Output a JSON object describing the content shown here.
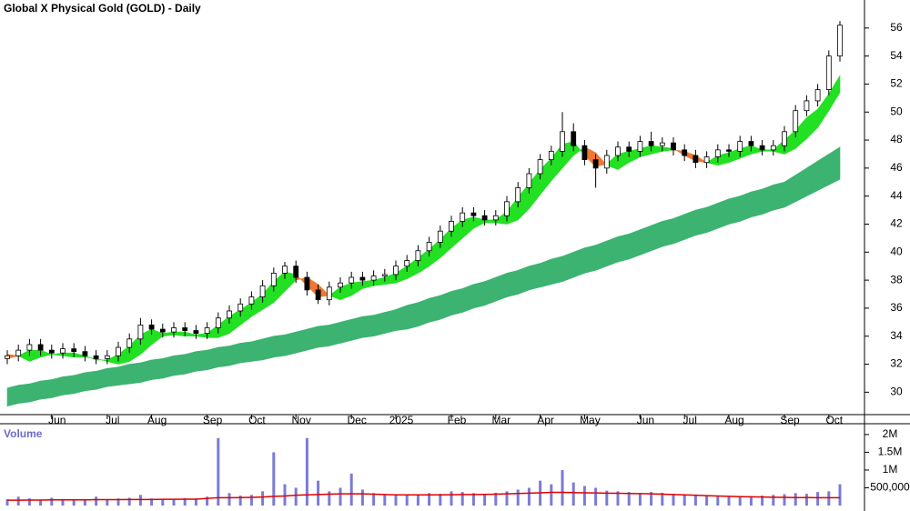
{
  "chart_data": [
    {
      "type": "candlestick",
      "title": "Global X Physical Gold (GOLD) - Daily",
      "categories": [
        null,
        null,
        null,
        null,
        "Jun",
        null,
        null,
        null,
        null,
        "Jul",
        null,
        null,
        null,
        "Aug",
        null,
        null,
        null,
        null,
        "Sep",
        null,
        null,
        null,
        "Oct",
        null,
        null,
        null,
        "Nov",
        null,
        null,
        null,
        null,
        "Dec",
        null,
        null,
        null,
        "2025",
        null,
        null,
        null,
        null,
        "Feb",
        null,
        null,
        null,
        "Mar",
        null,
        null,
        null,
        "Apr",
        null,
        null,
        null,
        "May",
        null,
        null,
        null,
        null,
        "Jun",
        null,
        null,
        null,
        "Jul",
        null,
        null,
        null,
        "Aug",
        null,
        null,
        null,
        null,
        "Sep",
        null,
        null,
        null,
        "Oct",
        null
      ],
      "open": [
        32.4,
        32.6,
        33.0,
        33.4,
        33.0,
        32.8,
        33.1,
        32.9,
        32.6,
        32.4,
        32.6,
        33.2,
        33.8,
        34.8,
        34.5,
        34.3,
        34.6,
        34.4,
        34.2,
        34.6,
        35.3,
        35.8,
        36.3,
        36.8,
        37.6,
        38.5,
        39.0,
        38.2,
        37.3,
        36.6,
        37.5,
        37.8,
        38.2,
        38.0,
        38.3,
        38.4,
        39.0,
        39.4,
        40.1,
        40.7,
        41.5,
        42.2,
        42.8,
        42.6,
        42.3,
        42.6,
        43.6,
        44.6,
        45.6,
        46.6,
        47.2,
        48.6,
        47.6,
        46.6,
        46.0,
        46.9,
        47.5,
        47.2,
        47.9,
        47.6,
        47.8,
        47.3,
        46.9,
        46.4,
        46.8,
        47.3,
        47.2,
        47.9,
        47.6,
        47.3,
        47.6,
        48.6,
        50.1,
        50.8,
        51.6,
        54.0
      ],
      "high": [
        33.0,
        33.4,
        33.8,
        33.8,
        33.4,
        33.5,
        33.5,
        33.3,
        33.0,
        33.0,
        33.6,
        34.2,
        35.3,
        35.2,
        34.9,
        35.0,
        35.0,
        34.8,
        35.0,
        35.7,
        36.2,
        36.7,
        37.2,
        38.0,
        38.9,
        39.3,
        39.4,
        38.6,
        37.7,
        37.9,
        38.2,
        38.6,
        38.6,
        38.7,
        38.8,
        39.4,
        39.8,
        40.5,
        41.1,
        41.9,
        42.6,
        43.2,
        43.2,
        43.0,
        43.0,
        44.0,
        45.0,
        46.0,
        47.0,
        47.6,
        50.0,
        49.2,
        48.0,
        47.0,
        47.3,
        47.9,
        47.9,
        48.3,
        48.6,
        48.2,
        48.2,
        47.7,
        47.3,
        47.2,
        47.7,
        47.7,
        48.3,
        48.3,
        48.0,
        48.0,
        49.0,
        50.5,
        51.2,
        52.0,
        54.4,
        56.5
      ],
      "low": [
        32.0,
        32.2,
        32.6,
        32.6,
        32.4,
        32.4,
        32.5,
        32.2,
        32.0,
        32.0,
        32.2,
        32.8,
        33.4,
        34.1,
        33.9,
        33.9,
        34.0,
        33.8,
        33.8,
        34.2,
        34.9,
        35.4,
        35.9,
        36.4,
        37.2,
        38.1,
        37.8,
        36.9,
        36.3,
        36.2,
        37.1,
        37.4,
        37.6,
        37.6,
        37.9,
        38.0,
        38.6,
        39.0,
        39.7,
        40.3,
        41.1,
        41.8,
        42.2,
        41.9,
        41.9,
        42.2,
        43.2,
        44.2,
        45.2,
        46.2,
        46.8,
        47.2,
        46.2,
        44.6,
        45.6,
        46.5,
        46.8,
        46.8,
        47.2,
        47.2,
        46.9,
        46.5,
        46.0,
        46.0,
        46.4,
        46.8,
        46.8,
        47.2,
        46.9,
        46.9,
        47.2,
        48.2,
        49.7,
        50.4,
        51.2,
        53.6
      ],
      "close": [
        32.6,
        33.0,
        33.4,
        33.0,
        32.8,
        33.1,
        32.9,
        32.6,
        32.4,
        32.6,
        33.2,
        33.8,
        34.8,
        34.5,
        34.3,
        34.6,
        34.4,
        34.2,
        34.6,
        35.3,
        35.8,
        36.3,
        36.8,
        37.6,
        38.5,
        39.0,
        38.2,
        37.3,
        36.6,
        37.5,
        37.8,
        38.2,
        38.0,
        38.3,
        38.4,
        39.0,
        39.4,
        40.1,
        40.7,
        41.5,
        42.2,
        42.8,
        42.6,
        42.3,
        42.6,
        43.6,
        44.6,
        45.6,
        46.6,
        47.2,
        48.6,
        47.6,
        46.6,
        46.0,
        46.9,
        47.5,
        47.2,
        47.9,
        47.6,
        47.8,
        47.3,
        46.9,
        46.4,
        46.8,
        47.3,
        47.2,
        47.9,
        47.6,
        47.3,
        47.6,
        48.6,
        50.1,
        50.8,
        51.6,
        54.0,
        56.2
      ],
      "up_color": "#ffffff",
      "down_color": "#000000",
      "ema_slow": {
        "color": "#3cb371",
        "upper": [
          30.3,
          30.5,
          30.6,
          30.8,
          30.9,
          31.1,
          31.2,
          31.4,
          31.5,
          31.7,
          31.8,
          32.0,
          32.1,
          32.3,
          32.4,
          32.6,
          32.7,
          32.9,
          33.0,
          33.2,
          33.3,
          33.5,
          33.6,
          33.8,
          34.0,
          34.1,
          34.3,
          34.5,
          34.7,
          34.8,
          35.0,
          35.2,
          35.4,
          35.5,
          35.7,
          35.9,
          36.2,
          36.4,
          36.7,
          36.9,
          37.2,
          37.4,
          37.7,
          37.9,
          38.2,
          38.5,
          38.7,
          39.0,
          39.2,
          39.5,
          39.7,
          40.0,
          40.3,
          40.5,
          40.8,
          41.1,
          41.3,
          41.6,
          41.9,
          42.2,
          42.4,
          42.7,
          43.0,
          43.2,
          43.5,
          43.8,
          44.0,
          44.3,
          44.5,
          44.8,
          45.0,
          45.5,
          46.0,
          46.5,
          47.0,
          47.5
        ],
        "lower": [
          29.0,
          29.2,
          29.3,
          29.5,
          29.6,
          29.8,
          29.9,
          30.1,
          30.2,
          30.4,
          30.5,
          30.6,
          30.7,
          30.9,
          31.0,
          31.2,
          31.3,
          31.5,
          31.6,
          31.8,
          31.9,
          32.1,
          32.2,
          32.3,
          32.5,
          32.6,
          32.8,
          33.0,
          33.2,
          33.3,
          33.5,
          33.7,
          33.9,
          34.0,
          34.2,
          34.4,
          34.5,
          34.7,
          35.0,
          35.2,
          35.5,
          35.7,
          36.0,
          36.2,
          36.5,
          36.8,
          37.0,
          37.3,
          37.5,
          37.7,
          37.9,
          38.2,
          38.5,
          38.7,
          39.0,
          39.3,
          39.5,
          39.8,
          40.1,
          40.4,
          40.6,
          40.9,
          41.2,
          41.4,
          41.7,
          42.0,
          42.2,
          42.5,
          42.7,
          43.0,
          43.2,
          43.6,
          44.0,
          44.4,
          44.8,
          45.2
        ]
      },
      "ema_fast": {
        "color": "#22e022",
        "cross_color": "#f07830",
        "a": [
          32.4,
          32.6,
          33.0,
          33.0,
          32.7,
          32.8,
          32.8,
          32.6,
          32.3,
          32.3,
          32.7,
          33.3,
          34.1,
          34.5,
          34.2,
          34.3,
          34.3,
          34.1,
          34.2,
          34.8,
          35.4,
          35.9,
          36.4,
          37.0,
          37.9,
          38.6,
          38.4,
          37.6,
          36.8,
          36.9,
          37.5,
          37.8,
          37.9,
          38.0,
          38.2,
          38.5,
          39.0,
          39.6,
          40.2,
          40.9,
          41.7,
          42.3,
          42.5,
          42.3,
          42.3,
          42.9,
          43.9,
          44.9,
          45.9,
          46.7,
          47.7,
          47.9,
          46.9,
          46.1,
          46.3,
          47.0,
          47.2,
          47.4,
          47.6,
          47.5,
          47.4,
          46.9,
          46.5,
          46.4,
          46.9,
          47.1,
          47.4,
          47.6,
          47.3,
          47.3,
          48.0,
          48.7,
          49.6,
          50.2,
          51.3,
          52.6
        ],
        "b": [
          32.7,
          32.6,
          32.2,
          32.5,
          32.7,
          32.6,
          32.5,
          32.5,
          32.4,
          32.2,
          32.0,
          32.2,
          32.7,
          33.4,
          34.0,
          34.1,
          34.0,
          34.0,
          33.9,
          33.9,
          34.2,
          34.8,
          35.4,
          35.9,
          36.4,
          37.2,
          38.0,
          38.2,
          37.7,
          36.9,
          36.6,
          36.9,
          37.4,
          37.6,
          37.7,
          37.8,
          38.1,
          38.5,
          39.0,
          39.6,
          40.3,
          41.0,
          41.7,
          42.1,
          42.1,
          42.0,
          42.3,
          43.1,
          44.1,
          45.1,
          46.0,
          46.9,
          47.5,
          47.1,
          46.2,
          45.9,
          46.4,
          46.8,
          47.0,
          47.2,
          47.3,
          47.2,
          46.9,
          46.4,
          46.2,
          46.4,
          46.7,
          47.0,
          47.2,
          47.2,
          47.0,
          47.4,
          48.1,
          48.9,
          50.1,
          51.4
        ]
      },
      "ylim": [
        28.4,
        58.0
      ],
      "yticks": [
        30,
        32,
        34,
        36,
        38,
        40,
        42,
        44,
        46,
        48,
        50,
        52,
        54,
        56
      ]
    },
    {
      "type": "bar",
      "title": "Volume",
      "color": "#7b7bd6",
      "values": [
        180000,
        250000,
        200000,
        150000,
        220000,
        170000,
        160000,
        150000,
        250000,
        180000,
        200000,
        220000,
        300000,
        200000,
        180000,
        170000,
        210000,
        200000,
        250000,
        1900000,
        350000,
        280000,
        300000,
        400000,
        1500000,
        600000,
        500000,
        1900000,
        700000,
        400000,
        500000,
        900000,
        450000,
        350000,
        300000,
        280000,
        300000,
        320000,
        350000,
        330000,
        400000,
        380000,
        350000,
        330000,
        360000,
        400000,
        450000,
        500000,
        700000,
        600000,
        1000000,
        650000,
        550000,
        500000,
        420000,
        400000,
        380000,
        350000,
        380000,
        360000,
        330000,
        300000,
        280000,
        270000,
        260000,
        250000,
        270000,
        260000,
        280000,
        300000,
        320000,
        350000,
        330000,
        380000,
        400000,
        600000
      ],
      "ma": {
        "color": "#e00000",
        "values": [
          150000,
          150000,
          155000,
          155000,
          160000,
          160000,
          160000,
          160000,
          165000,
          165000,
          165000,
          170000,
          170000,
          170000,
          175000,
          175000,
          180000,
          180000,
          200000,
          220000,
          220000,
          225000,
          230000,
          240000,
          260000,
          270000,
          290000,
          300000,
          310000,
          320000,
          330000,
          330000,
          330000,
          320000,
          310000,
          300000,
          300000,
          300000,
          300000,
          300000,
          305000,
          310000,
          310000,
          315000,
          320000,
          330000,
          340000,
          350000,
          360000,
          370000,
          370000,
          365000,
          360000,
          355000,
          350000,
          345000,
          340000,
          335000,
          330000,
          320000,
          310000,
          300000,
          290000,
          280000,
          270000,
          260000,
          250000,
          245000,
          240000,
          235000,
          230000,
          225000,
          225000,
          220000,
          220000,
          220000
        ]
      },
      "ylim": [
        0,
        2330000
      ],
      "yticks": [
        {
          "value": 500000,
          "label": "500,000"
        },
        {
          "value": 1000000,
          "label": "1M"
        },
        {
          "value": 1500000,
          "label": "1.5M"
        },
        {
          "value": 2000000,
          "label": "2M"
        }
      ]
    }
  ]
}
